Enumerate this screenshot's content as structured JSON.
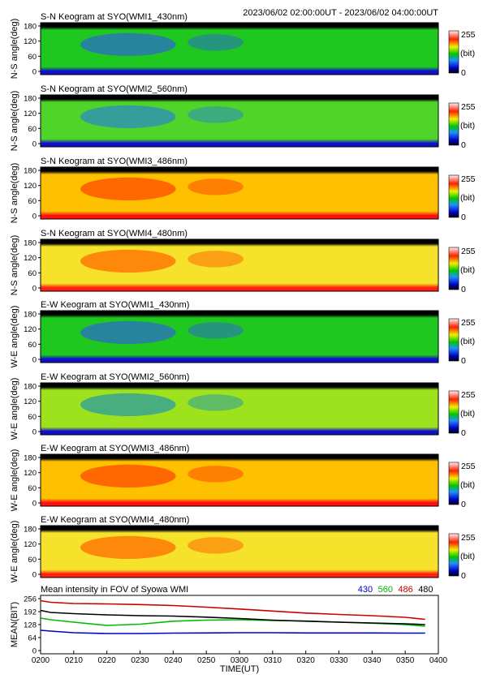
{
  "header": {
    "time_range": "2023/06/02 02:00:00UT - 2023/06/02 04:00:00UT"
  },
  "colorbar": {
    "max_label": "255",
    "min_label": "0",
    "unit_label": "(bit)"
  },
  "chart_data": [
    {
      "type": "heatmap",
      "title": "S-N Keogram at SYO(WMI1_430nm)",
      "ylabel": "N-S angle(deg)",
      "yticks": [
        "180",
        "120",
        "60",
        "0"
      ],
      "ylim": [
        0,
        180
      ],
      "zlim": [
        0,
        255
      ],
      "zunit": "(bit)",
      "palette": "dark-blue-green-yellow-red-white",
      "colors": {
        "top_band": "#000000",
        "bottom_band": "#1010c8",
        "background": "#1ec81e",
        "patch": "#2c6cc8"
      }
    },
    {
      "type": "heatmap",
      "title": "S-N Keogram at SYO(WMI2_560nm)",
      "ylabel": "N-S angle(deg)",
      "yticks": [
        "180",
        "120",
        "60",
        "0"
      ],
      "ylim": [
        0,
        180
      ],
      "zlim": [
        0,
        255
      ],
      "zunit": "(bit)",
      "palette": "dark-blue-green-yellow-red-white",
      "colors": {
        "top_band": "#000000",
        "bottom_band": "#1010c8",
        "background": "#4fd42a",
        "patch": "#2c8cc0"
      }
    },
    {
      "type": "heatmap",
      "title": "S-N Keogram at SYO(WMI3_486nm)",
      "ylabel": "N-S angle(deg)",
      "yticks": [
        "180",
        "120",
        "60",
        "0"
      ],
      "ylim": [
        0,
        180
      ],
      "zlim": [
        0,
        255
      ],
      "zunit": "(bit)",
      "palette": "dark-blue-green-yellow-red-white",
      "colors": {
        "top_band": "#000000",
        "bottom_band": "#ff1010",
        "background": "#ffc000",
        "patch": "#ff4a00"
      }
    },
    {
      "type": "heatmap",
      "title": "S-N Keogram at SYO(WMI4_480nm)",
      "ylabel": "N-S angle(deg)",
      "yticks": [
        "180",
        "120",
        "60",
        "0"
      ],
      "ylim": [
        0,
        180
      ],
      "zlim": [
        0,
        255
      ],
      "zunit": "(bit)",
      "palette": "dark-blue-green-yellow-red-white",
      "colors": {
        "top_band": "#000000",
        "bottom_band": "#ff2010",
        "background": "#f6e22a",
        "patch": "#ff6a00"
      }
    },
    {
      "type": "heatmap",
      "title": "E-W Keogram at SYO(WMI1_430nm)",
      "ylabel": "W-E angle(deg)",
      "yticks": [
        "180",
        "120",
        "60",
        "0"
      ],
      "ylim": [
        0,
        180
      ],
      "zlim": [
        0,
        255
      ],
      "zunit": "(bit)",
      "palette": "dark-blue-green-yellow-red-white",
      "colors": {
        "top_band": "#000000",
        "bottom_band": "#1010c8",
        "background": "#1ec81e",
        "patch": "#2c6cc8"
      }
    },
    {
      "type": "heatmap",
      "title": "E-W Keogram at SYO(WMI2_560nm)",
      "ylabel": "W-E angle(deg)",
      "yticks": [
        "180",
        "120",
        "60",
        "0"
      ],
      "ylim": [
        0,
        180
      ],
      "zlim": [
        0,
        255
      ],
      "zunit": "(bit)",
      "palette": "dark-blue-green-yellow-red-white",
      "colors": {
        "top_band": "#000000",
        "bottom_band": "#1010c8",
        "background": "#9ee21e",
        "patch": "#2c9ca0"
      }
    },
    {
      "type": "heatmap",
      "title": "E-W Keogram at SYO(WMI3_486nm)",
      "ylabel": "W-E angle(deg)",
      "yticks": [
        "180",
        "120",
        "60",
        "0"
      ],
      "ylim": [
        0,
        180
      ],
      "zlim": [
        0,
        255
      ],
      "zunit": "(bit)",
      "palette": "dark-blue-green-yellow-red-white",
      "colors": {
        "top_band": "#000000",
        "bottom_band": "#ff1010",
        "background": "#ffc000",
        "patch": "#ff4a00"
      }
    },
    {
      "type": "heatmap",
      "title": "E-W Keogram at SYO(WMI4_480nm)",
      "ylabel": "W-E angle(deg)",
      "yticks": [
        "180",
        "120",
        "60",
        "0"
      ],
      "ylim": [
        0,
        180
      ],
      "zlim": [
        0,
        255
      ],
      "zunit": "(bit)",
      "palette": "dark-blue-green-yellow-red-white",
      "colors": {
        "top_band": "#000000",
        "bottom_band": "#ff2010",
        "background": "#f6e22a",
        "patch": "#ff6a00"
      }
    },
    {
      "type": "line",
      "title": "Mean intensity in FOV of Syowa WMI",
      "xlabel": "TIME(UT)",
      "ylabel": "MEAN(BIT)",
      "xticks": [
        "0200",
        "0210",
        "0220",
        "0230",
        "0240",
        "0250",
        "0300",
        "0310",
        "0320",
        "0330",
        "0340",
        "0350",
        "0400"
      ],
      "yticks": [
        "256",
        "192",
        "128",
        "64",
        "0"
      ],
      "xlim": [
        0,
        120
      ],
      "ylim": [
        0,
        256
      ],
      "x": [
        0,
        3,
        10,
        20,
        30,
        40,
        50,
        60,
        70,
        80,
        90,
        100,
        110,
        116
      ],
      "series": [
        {
          "name": "430",
          "color": "#0000cc",
          "values": [
            100,
            96,
            88,
            84,
            84,
            86,
            87,
            88,
            88,
            87,
            87,
            87,
            86,
            86
          ]
        },
        {
          "name": "560",
          "color": "#00bb00",
          "values": [
            160,
            152,
            140,
            124,
            130,
            145,
            150,
            152,
            148,
            146,
            140,
            135,
            128,
            120
          ]
        },
        {
          "name": "486",
          "color": "#cc0000",
          "values": [
            246,
            238,
            232,
            230,
            227,
            222,
            214,
            205,
            195,
            185,
            178,
            172,
            164,
            154
          ]
        },
        {
          "name": "480",
          "color": "#000000",
          "values": [
            198,
            188,
            182,
            176,
            172,
            170,
            165,
            158,
            150,
            145,
            140,
            136,
            132,
            128
          ]
        }
      ]
    }
  ]
}
